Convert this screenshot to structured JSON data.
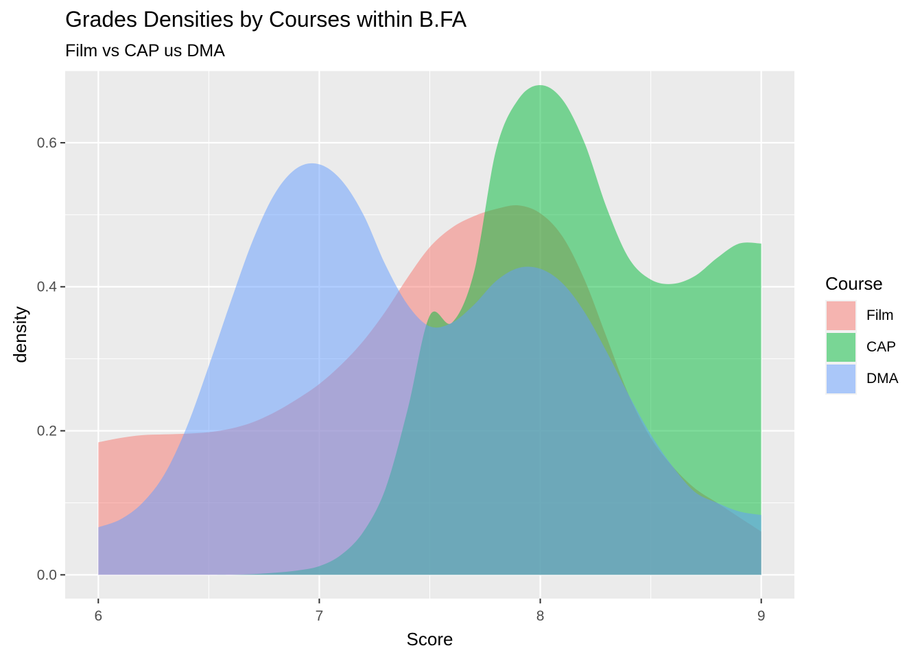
{
  "chart_data": {
    "type": "area",
    "subtype": "density",
    "title": "Grades Densities by Courses within B.FA",
    "subtitle": "Film vs CAP us DMA",
    "xlabel": "Score",
    "ylabel": "density",
    "xlim": [
      5.85,
      9.15
    ],
    "ylim": [
      -0.033,
      0.7
    ],
    "x_ticks": [
      6,
      7,
      8,
      9
    ],
    "x_tick_labels": [
      "6",
      "7",
      "8",
      "9"
    ],
    "y_ticks": [
      0.0,
      0.2,
      0.4,
      0.6
    ],
    "y_tick_labels": [
      "0.0",
      "0.2",
      "0.4",
      "0.6"
    ],
    "grid": true,
    "legend": {
      "title": "Course",
      "position": "right"
    },
    "series": [
      {
        "name": "Film",
        "color": "#F8766D",
        "x": [
          6.0,
          6.1,
          6.2,
          6.3,
          6.4,
          6.5,
          6.6,
          6.7,
          6.8,
          6.9,
          7.0,
          7.1,
          7.2,
          7.3,
          7.4,
          7.5,
          7.6,
          7.7,
          7.8,
          7.9,
          8.0,
          8.1,
          8.2,
          8.3,
          8.4,
          8.5,
          8.6,
          8.7,
          8.8,
          8.9,
          9.0
        ],
        "values": [
          0.184,
          0.19,
          0.194,
          0.195,
          0.196,
          0.198,
          0.203,
          0.212,
          0.226,
          0.244,
          0.265,
          0.292,
          0.325,
          0.366,
          0.413,
          0.455,
          0.482,
          0.498,
          0.508,
          0.513,
          0.502,
          0.47,
          0.41,
          0.33,
          0.25,
          0.19,
          0.15,
          0.12,
          0.1,
          0.08,
          0.06
        ]
      },
      {
        "name": "CAP",
        "color": "#00BA38",
        "x": [
          6.5,
          6.6,
          6.7,
          6.8,
          6.9,
          7.0,
          7.1,
          7.2,
          7.3,
          7.4,
          7.5,
          7.6,
          7.7,
          7.8,
          7.9,
          8.0,
          8.1,
          8.2,
          8.3,
          8.4,
          8.5,
          8.6,
          8.7,
          8.8,
          8.9,
          9.0
        ],
        "values": [
          0.0,
          0.0,
          0.001,
          0.003,
          0.006,
          0.012,
          0.028,
          0.06,
          0.12,
          0.23,
          0.36,
          0.35,
          0.42,
          0.59,
          0.66,
          0.68,
          0.66,
          0.6,
          0.51,
          0.44,
          0.41,
          0.404,
          0.415,
          0.44,
          0.46,
          0.46
        ]
      },
      {
        "name": "DMA",
        "color": "#619CFF",
        "x": [
          6.0,
          6.1,
          6.2,
          6.3,
          6.4,
          6.5,
          6.6,
          6.7,
          6.8,
          6.9,
          7.0,
          7.1,
          7.2,
          7.3,
          7.4,
          7.5,
          7.6,
          7.7,
          7.8,
          7.9,
          8.0,
          8.1,
          8.2,
          8.3,
          8.4,
          8.5,
          8.6,
          8.7,
          8.8,
          8.9,
          9.0
        ],
        "values": [
          0.066,
          0.077,
          0.1,
          0.14,
          0.205,
          0.29,
          0.38,
          0.465,
          0.53,
          0.565,
          0.57,
          0.548,
          0.5,
          0.43,
          0.375,
          0.345,
          0.35,
          0.375,
          0.408,
          0.426,
          0.425,
          0.405,
          0.365,
          0.31,
          0.25,
          0.195,
          0.15,
          0.115,
          0.1,
          0.088,
          0.083
        ]
      }
    ]
  }
}
